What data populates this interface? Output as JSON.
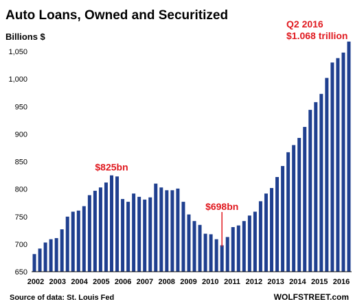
{
  "chart_data": {
    "type": "bar",
    "title": "Auto Loans, Owned and Securitized",
    "ylabel": "Billions $",
    "ylim": [
      650,
      1075
    ],
    "yticks": [
      "650",
      "700",
      "750",
      "800",
      "850",
      "900",
      "950",
      "1,000",
      "1,050"
    ],
    "years": [
      "2002",
      "2003",
      "2004",
      "2005",
      "2006",
      "2007",
      "2008",
      "2009",
      "2010",
      "2011",
      "2012",
      "2013",
      "2014",
      "2015",
      "2016"
    ],
    "bar_color": "#1f3f8f",
    "values": [
      682,
      692,
      703,
      709,
      711,
      727,
      750,
      759,
      761,
      769,
      789,
      797,
      803,
      812,
      825,
      823,
      782,
      777,
      792,
      786,
      781,
      785,
      810,
      803,
      798,
      798,
      801,
      777,
      754,
      742,
      735,
      719,
      718,
      709,
      698,
      713,
      731,
      734,
      742,
      752,
      759,
      778,
      792,
      802,
      822,
      842,
      867,
      880,
      893,
      913,
      944,
      958,
      973,
      1002,
      1030,
      1038,
      1048,
      1068
    ],
    "annotations": [
      {
        "text": "$825bn",
        "index": 14
      },
      {
        "text": "$698bn",
        "index": 34
      },
      {
        "text": "Q2 2016",
        "index": 57
      },
      {
        "text": "$1.068 trillion",
        "index": 57
      }
    ],
    "annotation_color": "#e0191f"
  },
  "footer": {
    "source": "Source of data: St. Louis Fed",
    "brand": "WOLFSTREET.com"
  }
}
